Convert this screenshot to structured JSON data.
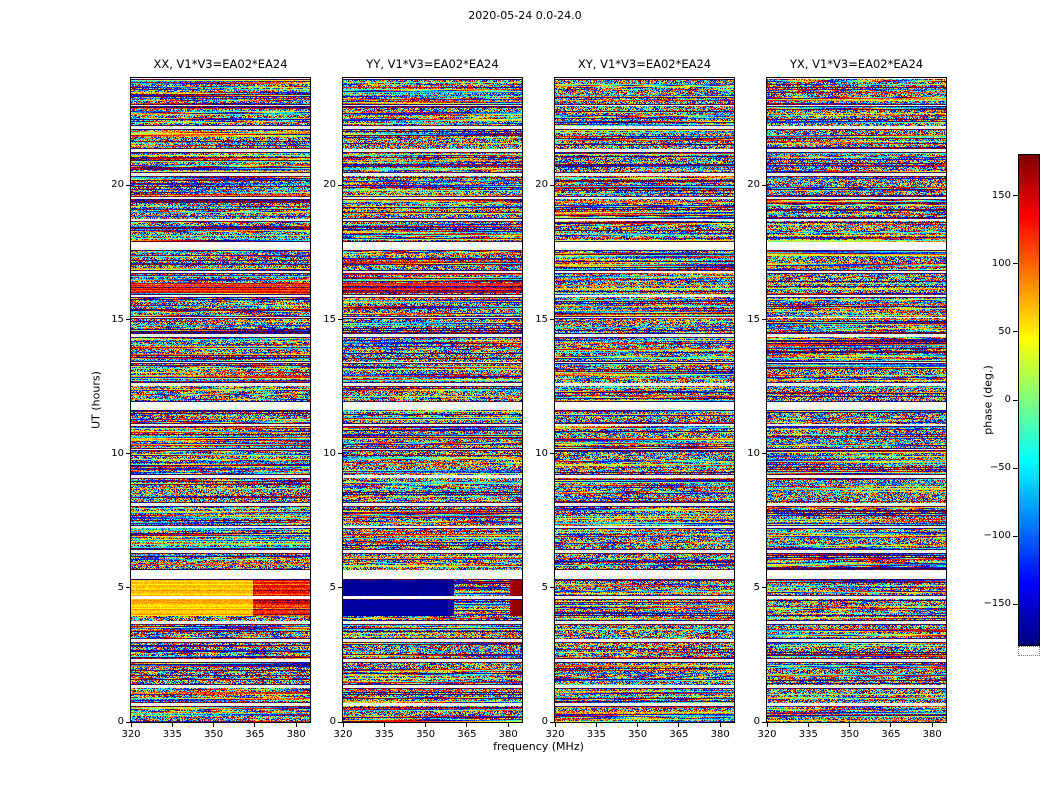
{
  "chart_data": {
    "type": "heatmap",
    "title": "2020-05-24 0.0-24.0",
    "xlabel": "frequency (MHz)",
    "ylabel": "UT (hours)",
    "x_range": [
      320,
      385
    ],
    "y_range": [
      0,
      24
    ],
    "x_ticks": [
      320,
      335,
      350,
      365,
      380
    ],
    "y_ticks": [
      0,
      5,
      10,
      15,
      20
    ],
    "grid": false,
    "legend": "none",
    "colormap": "jet",
    "colorbar": {
      "label": "phase (deg.)",
      "range": [
        -180,
        180
      ],
      "ticks": [
        150,
        100,
        50,
        0,
        -50,
        -100,
        -150
      ]
    },
    "panels": [
      {
        "id": "XX",
        "label": "XX, V1*V3=EA02*EA24",
        "seed": 101
      },
      {
        "id": "YY",
        "label": "YY, V1*V3=EA02*EA24",
        "seed": 202
      },
      {
        "id": "XY",
        "label": "XY, V1*V3=EA02*EA24",
        "seed": 303
      },
      {
        "id": "YX",
        "label": "YX, V1*V3=EA02*EA24",
        "seed": 404
      }
    ],
    "content_note": "Interferometric visibility phase vs frequency (x) and UT time (y) for baseline EA02*EA24 over 0-24 h; mostly random phase noise per pixel; white horizontal stripes are gaps between scans; thin dark rows bound many scans.",
    "scan_structure": {
      "seed": 9,
      "scan_hours": [
        0.5,
        1.0
      ],
      "gap_hours": [
        0.05,
        0.12
      ],
      "wide_gap_every": 7,
      "wide_gap_hours": 0.2
    },
    "features": [
      {
        "panel": "XX",
        "ut": [
          3.95,
          5.6
        ],
        "freq_frac": [
          0.0,
          0.68
        ],
        "phase_deg": 65,
        "jitter": 20,
        "note": "bright yellow coherent block"
      },
      {
        "panel": "XX",
        "ut": [
          3.95,
          5.6
        ],
        "freq_frac": [
          0.68,
          1.0
        ],
        "phase_deg": 130,
        "jitter": 45,
        "note": "orange-red block"
      },
      {
        "panel": "YY",
        "ut": [
          3.95,
          5.6
        ],
        "freq_frac": [
          0.0,
          0.62
        ],
        "phase_deg": -168,
        "jitter": 8,
        "note": "dark blue coherent block"
      },
      {
        "panel": "YY",
        "ut": [
          3.95,
          5.6
        ],
        "freq_frac": [
          0.93,
          1.0
        ],
        "phase_deg": 172,
        "jitter": 6,
        "note": "dark red stripe"
      },
      {
        "panel": "XX",
        "ut": [
          16.0,
          16.35
        ],
        "freq_frac": [
          0.0,
          1.0
        ],
        "phase_deg": 145,
        "jitter": 40,
        "note": "red band"
      },
      {
        "panel": "YY",
        "ut": [
          16.0,
          16.35
        ],
        "freq_frac": [
          0.0,
          1.0
        ],
        "phase_deg": 150,
        "jitter": 40,
        "note": "red band"
      }
    ]
  }
}
